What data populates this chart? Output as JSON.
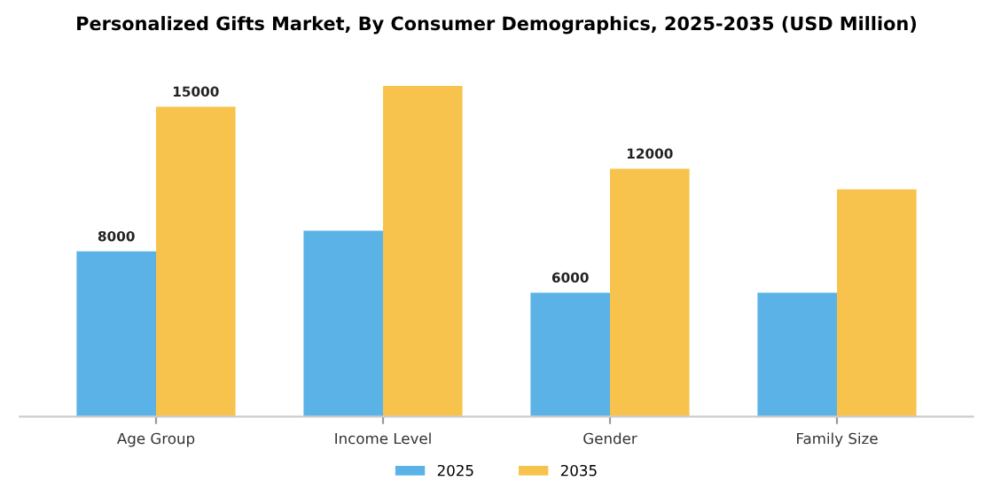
{
  "chart_data": {
    "type": "bar",
    "title": "Personalized Gifts Market, By Consumer Demographics, 2025-2035 (USD Million)",
    "categories": [
      "Age Group",
      "Income Level",
      "Gender",
      "Family Size"
    ],
    "series": [
      {
        "name": "2025",
        "color": "#5bb2e6",
        "values": [
          8000,
          9000,
          6000,
          6000
        ],
        "value_labels": [
          "8000",
          null,
          "6000",
          null
        ]
      },
      {
        "name": "2035",
        "color": "#f7c34c",
        "values": [
          15000,
          16000,
          12000,
          11000
        ],
        "value_labels": [
          "15000",
          null,
          "12000",
          null
        ]
      }
    ],
    "tick_labels": "x",
    "grid": false,
    "legend": "bottom"
  }
}
